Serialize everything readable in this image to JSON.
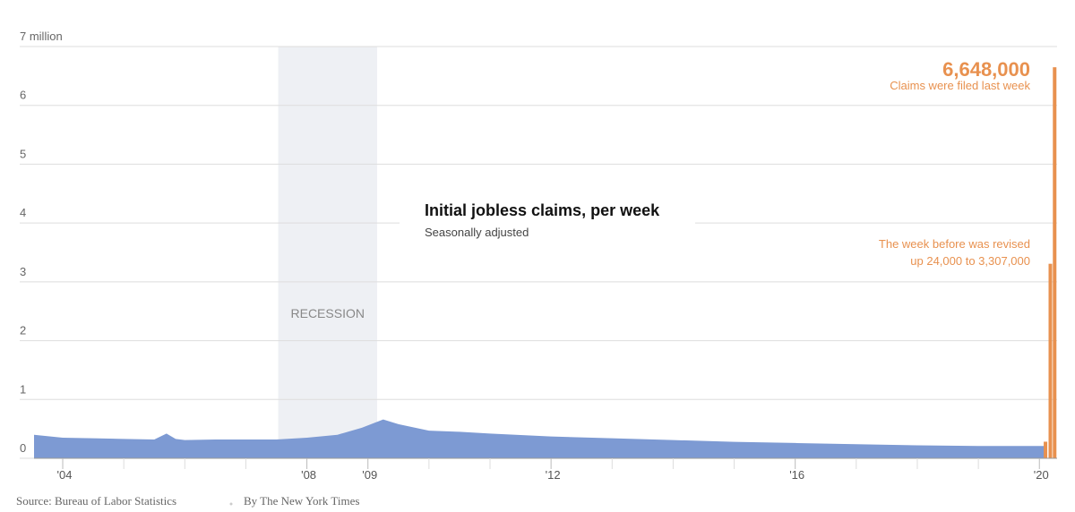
{
  "chart_data": {
    "type": "area",
    "title": "Initial jobless claims, per week",
    "subtitle": "Seasonally adjusted",
    "xlim": [
      2003.53,
      2020.29
    ],
    "xticks": [
      {
        "value": 2004,
        "label": "'04"
      },
      {
        "value": 2008,
        "label": "'08"
      },
      {
        "value": 2009,
        "label": "'09"
      },
      {
        "value": 2012,
        "label": "'12"
      },
      {
        "value": 2016,
        "label": "'16"
      },
      {
        "value": 2020,
        "label": "'20"
      }
    ],
    "xminor_ticks": [
      2005,
      2006,
      2007,
      2010,
      2011,
      2013,
      2014,
      2015,
      2017,
      2018,
      2019
    ],
    "ylim": [
      0,
      7
    ],
    "yticks": [
      0,
      1,
      2,
      3,
      4,
      5,
      6,
      {
        "value": 7,
        "label": "7 million"
      }
    ],
    "grid": true,
    "shaded_region": {
      "label": "RECESSION",
      "x": [
        2007.53,
        2009.15
      ],
      "color": "#eef0f4"
    },
    "series": [
      {
        "color": "#7d9ad3",
        "type": "area",
        "x": [
          2003.53,
          2004,
          2004.5,
          2005,
          2005.5,
          2005.7,
          2005.85,
          2006,
          2006.5,
          2007,
          2007.5,
          2008,
          2008.5,
          2008.9,
          2009.25,
          2009.5,
          2010,
          2010.5,
          2011,
          2012,
          2013,
          2014,
          2015,
          2016,
          2017,
          2018,
          2019,
          2020.1
        ],
        "values": [
          0.4,
          0.35,
          0.34,
          0.33,
          0.32,
          0.42,
          0.33,
          0.31,
          0.32,
          0.32,
          0.32,
          0.35,
          0.4,
          0.52,
          0.66,
          0.58,
          0.47,
          0.45,
          0.42,
          0.37,
          0.34,
          0.31,
          0.28,
          0.26,
          0.24,
          0.22,
          0.21,
          0.21
        ]
      },
      {
        "color": "#e8914f",
        "type": "bar",
        "x": [
          2020.1,
          2020.18,
          2020.25
        ],
        "values": [
          0.282,
          3.307,
          6.648
        ],
        "value_labels": [
          null,
          null,
          "6,648,000"
        ]
      }
    ],
    "annotations": [
      "Claims were filed last week",
      "The week before was revised",
      "up 24,000 to 3,307,000"
    ],
    "source": "Source: Bureau of Labor Statistics",
    "byline": "By The New York Times"
  }
}
